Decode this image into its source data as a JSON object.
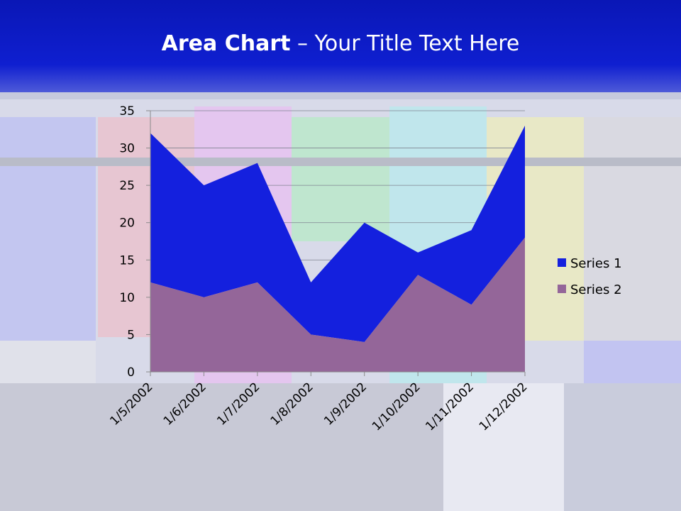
{
  "slide": {
    "title_bold": "Area Chart",
    "title_rest": " – Your Title Text Here"
  },
  "colors": {
    "series1": "#1420de",
    "series2": "#946699",
    "gridline": "#7f8390",
    "axis": "#8a8a8a"
  },
  "chart_data": {
    "type": "area",
    "stacked": true,
    "title": "",
    "xlabel": "",
    "ylabel": "",
    "categories": [
      "1/5/2002",
      "1/6/2002",
      "1/7/2002",
      "1/8/2002",
      "1/9/2002",
      "1/10/2002",
      "1/11/2002",
      "1/12/2002"
    ],
    "series": [
      {
        "name": "Series 1",
        "values": [
          20,
          15,
          16,
          7,
          16,
          3,
          10,
          15
        ]
      },
      {
        "name": "Series 2",
        "values": [
          12,
          10,
          12,
          5,
          4,
          13,
          9,
          18
        ]
      }
    ],
    "ylim": [
      0,
      35
    ],
    "yticks": [
      0,
      5,
      10,
      15,
      20,
      25,
      30,
      35
    ],
    "grid": true,
    "legend_position": "right"
  }
}
